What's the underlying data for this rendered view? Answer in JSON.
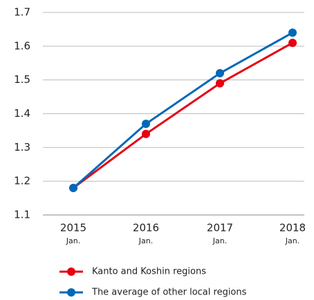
{
  "chart_data": {
    "type": "line",
    "categories": [
      "2015",
      "2016",
      "2017",
      "2018"
    ],
    "category_sublabels": [
      "Jan.",
      "Jan.",
      "Jan.",
      "Jan."
    ],
    "series": [
      {
        "name": "Kanto and Koshin regions",
        "color": "#e60012",
        "values": [
          1.18,
          1.34,
          1.49,
          1.61
        ]
      },
      {
        "name": "The average of other local regions",
        "color": "#0068b7",
        "values": [
          1.18,
          1.37,
          1.52,
          1.64
        ]
      }
    ],
    "ylim": [
      1.1,
      1.7
    ],
    "yticks": [
      1.1,
      1.2,
      1.3,
      1.4,
      1.5,
      1.6,
      1.7
    ],
    "grid": true
  }
}
